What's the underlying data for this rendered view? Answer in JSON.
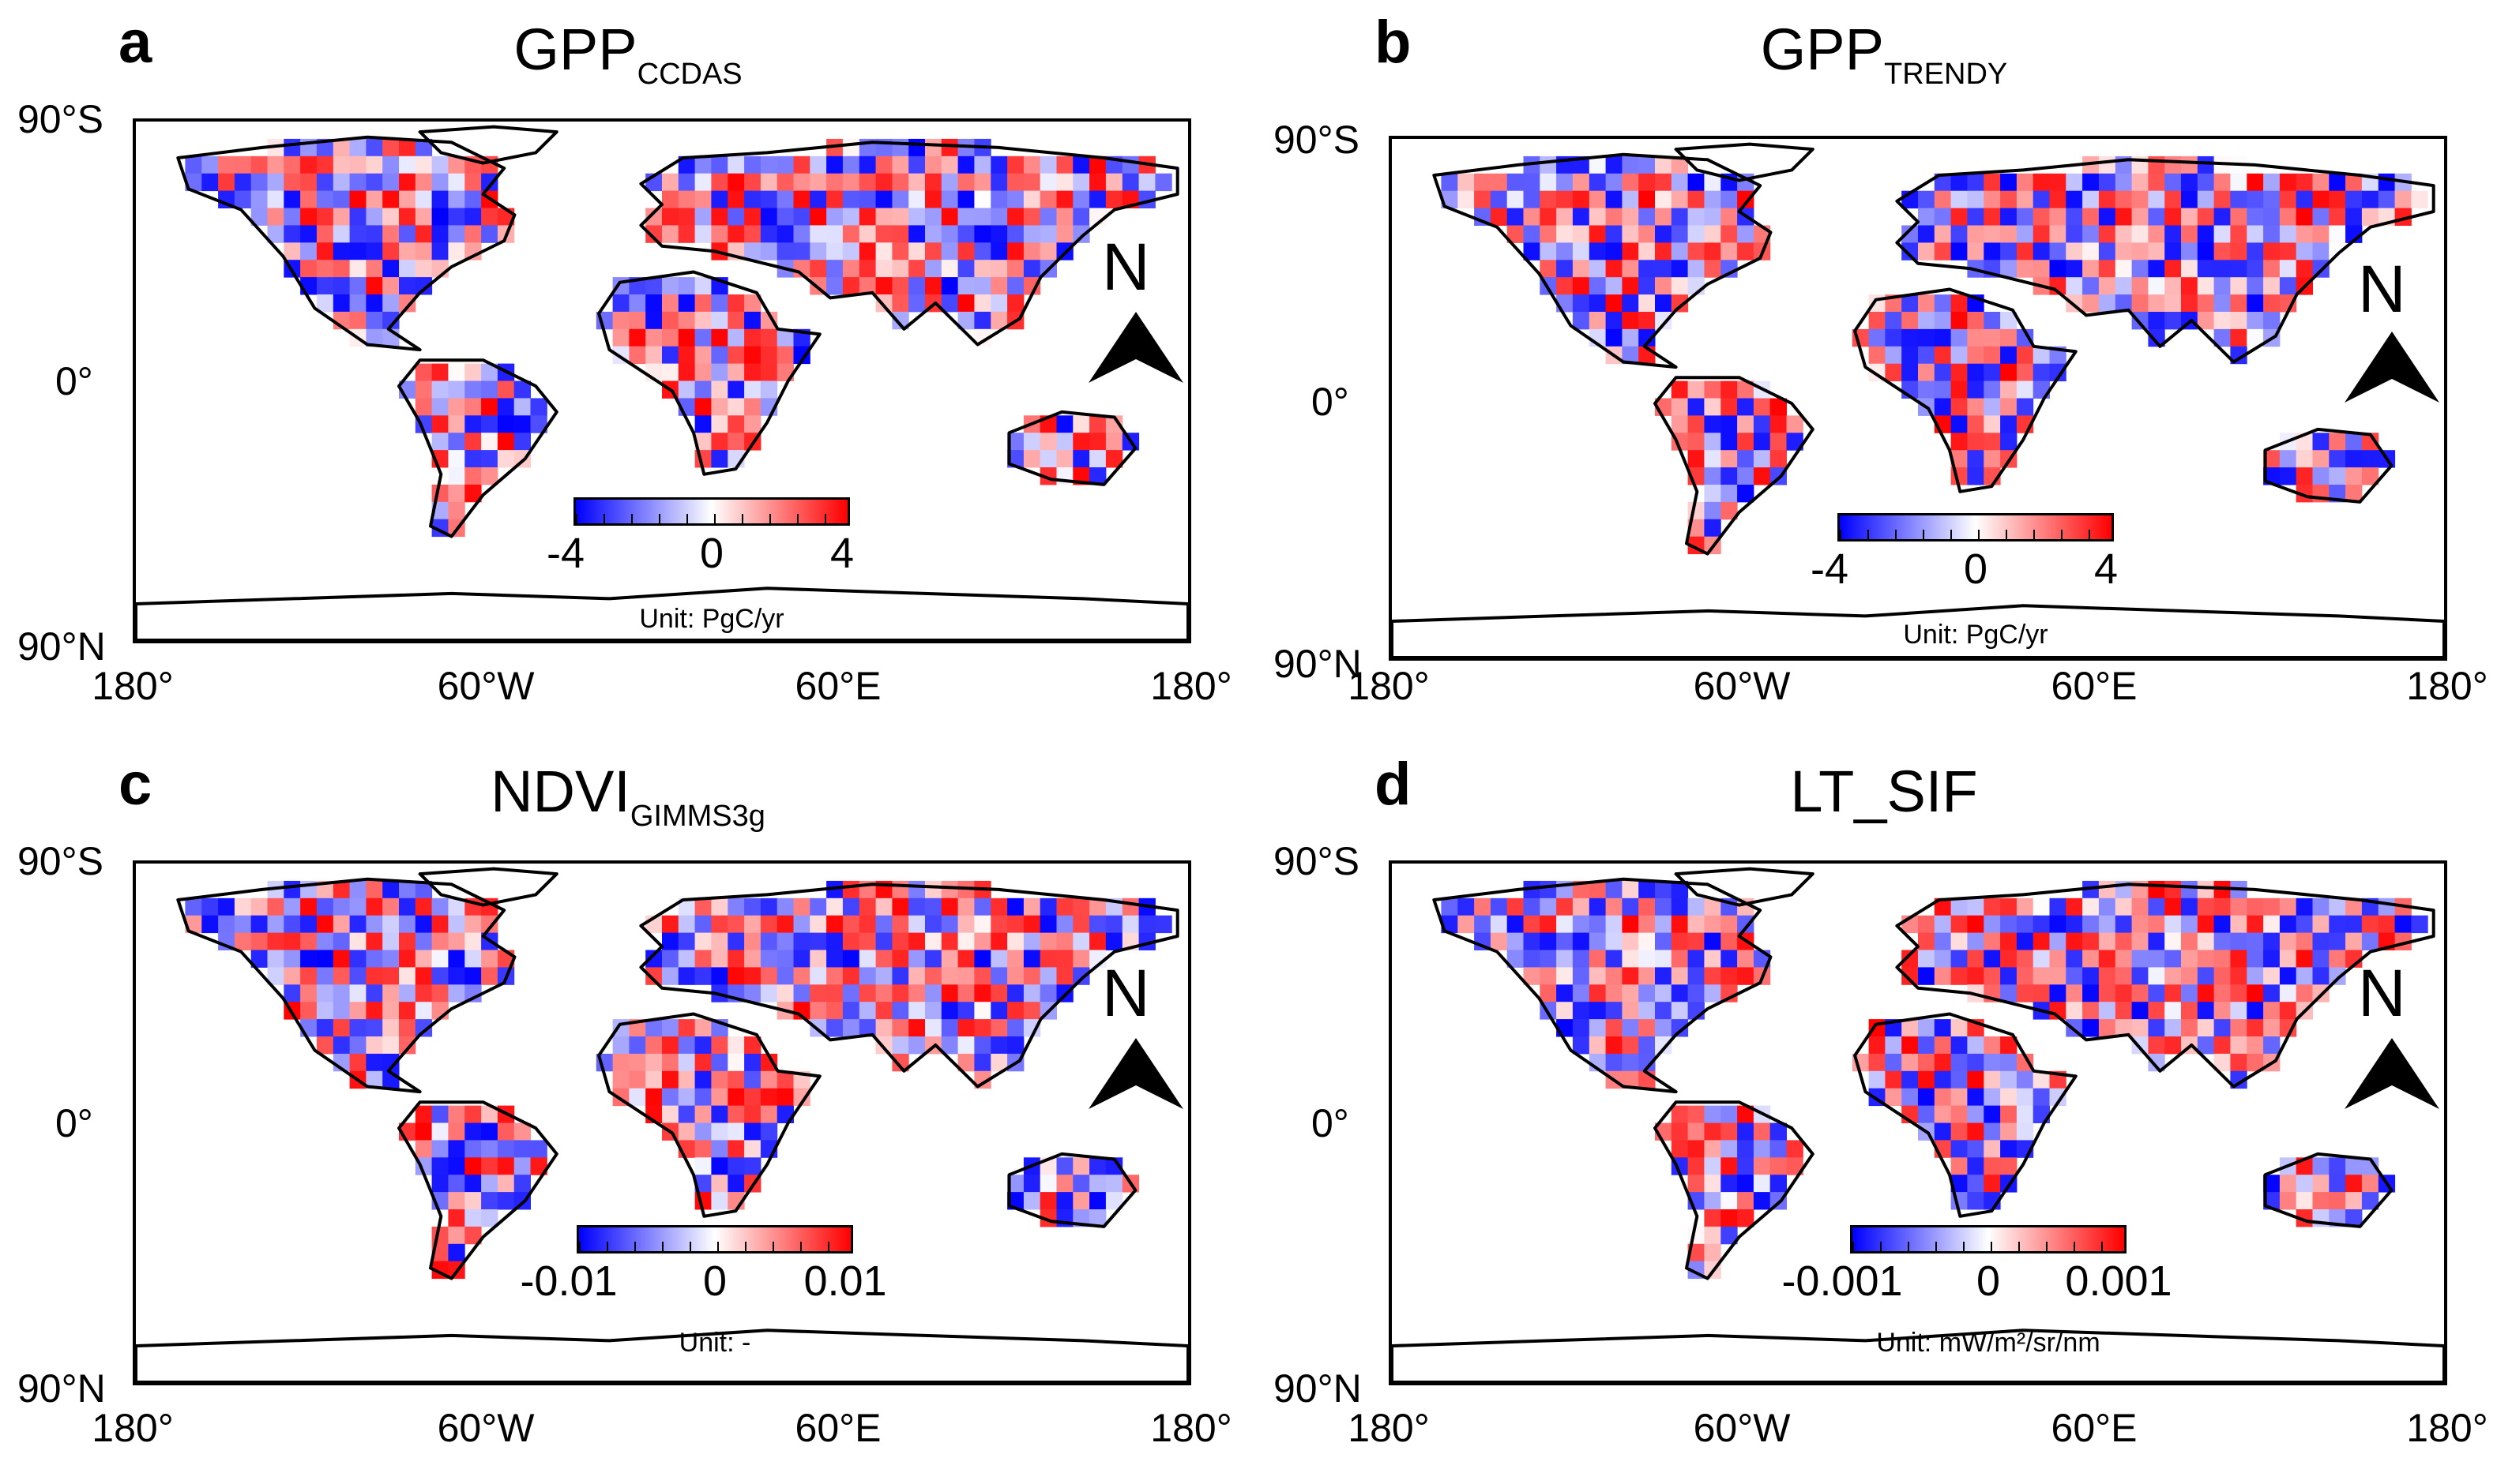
{
  "panels": [
    {
      "id": "a",
      "letter": "a",
      "title_main": "GPP",
      "title_sub": "CCDAS",
      "colorbar_min": "-4",
      "colorbar_mid": "0",
      "colorbar_max": "4",
      "unit": "Unit: PgC/yr",
      "seed": 11
    },
    {
      "id": "b",
      "letter": "b",
      "title_main": "GPP",
      "title_sub": "TRENDY",
      "colorbar_min": "-4",
      "colorbar_mid": "0",
      "colorbar_max": "4",
      "unit": "Unit: PgC/yr",
      "seed": 23
    },
    {
      "id": "c",
      "letter": "c",
      "title_main": "NDVI",
      "title_sub": "GIMMS3g",
      "colorbar_min": "-0.01",
      "colorbar_mid": "0",
      "colorbar_max": "0.01",
      "unit": "Unit: -",
      "seed": 37
    },
    {
      "id": "d",
      "letter": "d",
      "title_main": "LT_SIF",
      "title_sub": "",
      "colorbar_min": "-0.001",
      "colorbar_mid": "0",
      "colorbar_max": "0.001",
      "unit": "Unit: mW/m²/sr/nm",
      "seed": 53
    }
  ],
  "axes": {
    "lat_top": "90°S",
    "lat_mid": "0°",
    "lat_bottom": "90°N",
    "lon_ticks": [
      "180°",
      "60°W",
      "60°E",
      "180°"
    ]
  },
  "north_label": "N",
  "colors": {
    "negative": "#0000ff",
    "zero": "#ffffff",
    "positive": "#ff0000",
    "land_outline": "#000000"
  }
}
